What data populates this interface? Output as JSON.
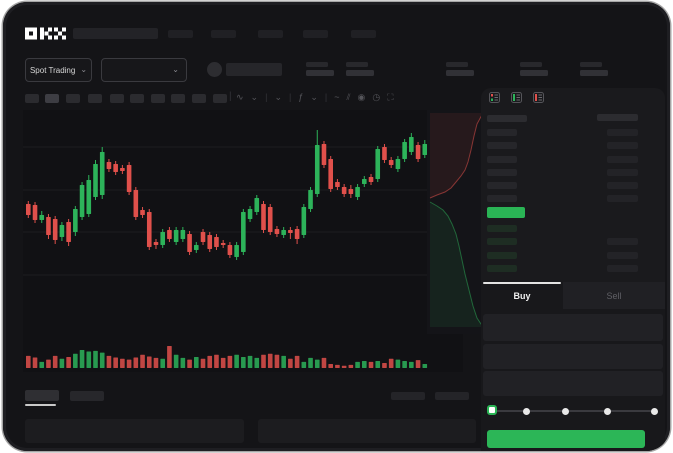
{
  "app": {
    "brand": "OKX"
  },
  "colors": {
    "up_green": "#2db35a",
    "down_red": "#e0504b",
    "accent_green": "#2ab455",
    "tab_indicator": "#e3e3e3",
    "frame_bg": "#141417",
    "panel_bg": "#1a1a1d"
  },
  "market_bar": {
    "market_selector_label": "Spot Trading",
    "selector_chevron": "⌄",
    "pair_select_chevron": "⌄"
  },
  "chart_toolbar": {
    "icons": [
      {
        "name": "candle-style-icon",
        "glyph": "∿"
      },
      {
        "name": "candle-style-chevron",
        "glyph": "⌄"
      },
      {
        "name": "divider",
        "glyph": "|"
      },
      {
        "name": "overlay-chevron",
        "glyph": "⌄"
      },
      {
        "name": "divider",
        "glyph": "|"
      },
      {
        "name": "indicators-icon",
        "glyph": "ƒ"
      },
      {
        "name": "indicators-chevron",
        "glyph": "⌄"
      },
      {
        "name": "divider",
        "glyph": "|"
      },
      {
        "name": "line-tool-icon",
        "glyph": "~"
      },
      {
        "name": "compare-icon",
        "glyph": "⫽"
      },
      {
        "name": "snapshot-icon",
        "glyph": "◉"
      },
      {
        "name": "history-icon",
        "glyph": "◷"
      },
      {
        "name": "fullscreen-icon",
        "glyph": "⛶"
      }
    ]
  },
  "order_book": {
    "view_modes": [
      "combined-book",
      "bids-only",
      "asks-only"
    ],
    "ask_rows": 6,
    "bid_rows": 4,
    "bid_right_bars": [
      false,
      true,
      true,
      true
    ]
  },
  "trade_panel": {
    "tabs": [
      {
        "label": "Buy",
        "active": true
      },
      {
        "label": "Sell",
        "active": false
      }
    ],
    "field_count": 3,
    "slider_stops": 5,
    "action_button_label": ""
  },
  "chart_data": [
    {
      "type": "candlestick",
      "title": "",
      "xlabel": "",
      "ylabel": "",
      "units": "relative (no axis labels visible in wireframe)",
      "ylim": [
        60,
        210
      ],
      "grid": true,
      "candles_ohlc": [
        [
          128,
          131,
          114,
          117
        ],
        [
          127,
          130,
          109,
          112
        ],
        [
          112,
          121,
          109,
          117
        ],
        [
          115,
          118,
          93,
          97
        ],
        [
          113,
          116,
          88,
          92
        ],
        [
          95,
          110,
          91,
          107
        ],
        [
          110,
          113,
          86,
          90
        ],
        [
          100,
          126,
          96,
          123
        ],
        [
          115,
          150,
          112,
          147
        ],
        [
          118,
          157,
          115,
          152
        ],
        [
          135,
          172,
          132,
          168
        ],
        [
          137,
          185,
          133,
          180
        ],
        [
          170,
          173,
          160,
          163
        ],
        [
          168,
          171,
          157,
          160
        ],
        [
          164,
          167,
          158,
          161
        ],
        [
          167,
          170,
          137,
          140
        ],
        [
          142,
          145,
          112,
          115
        ],
        [
          122,
          125,
          114,
          117
        ],
        [
          120,
          123,
          82,
          85
        ],
        [
          90,
          93,
          83,
          87
        ],
        [
          87,
          103,
          84,
          100
        ],
        [
          102,
          105,
          90,
          93
        ],
        [
          90,
          105,
          87,
          102
        ],
        [
          93,
          105,
          90,
          102
        ],
        [
          98,
          101,
          77,
          80
        ],
        [
          82,
          90,
          79,
          87
        ],
        [
          100,
          103,
          87,
          90
        ],
        [
          97,
          100,
          80,
          83
        ],
        [
          95,
          98,
          82,
          85
        ],
        [
          89,
          92,
          84,
          87
        ],
        [
          87,
          90,
          74,
          77
        ],
        [
          75,
          90,
          72,
          87
        ],
        [
          80,
          123,
          77,
          120
        ],
        [
          113,
          126,
          110,
          123
        ],
        [
          120,
          137,
          117,
          134
        ],
        [
          128,
          131,
          99,
          102
        ],
        [
          125,
          128,
          97,
          100
        ],
        [
          103,
          106,
          95,
          98
        ],
        [
          97,
          105,
          94,
          102
        ],
        [
          102,
          105,
          93,
          99
        ],
        [
          103,
          106,
          88,
          93
        ],
        [
          97,
          128,
          94,
          125
        ],
        [
          123,
          145,
          120,
          142
        ],
        [
          138,
          202,
          135,
          187
        ],
        [
          188,
          191,
          164,
          167
        ],
        [
          173,
          176,
          140,
          143
        ],
        [
          150,
          153,
          142,
          145
        ],
        [
          145,
          148,
          135,
          138
        ],
        [
          143,
          147,
          134,
          138
        ],
        [
          135,
          148,
          132,
          145
        ],
        [
          148,
          156,
          145,
          153
        ],
        [
          155,
          158,
          147,
          150
        ],
        [
          153,
          186,
          150,
          183
        ],
        [
          185,
          188,
          169,
          172
        ],
        [
          172,
          175,
          164,
          167
        ],
        [
          163,
          176,
          160,
          173
        ],
        [
          173,
          193,
          170,
          190
        ],
        [
          180,
          199,
          177,
          195
        ],
        [
          187,
          190,
          170,
          173
        ],
        [
          177,
          192,
          174,
          188
        ]
      ]
    },
    {
      "type": "bar",
      "name": "volume",
      "values": [
        55,
        48,
        28,
        38,
        55,
        42,
        50,
        65,
        82,
        75,
        78,
        70,
        55,
        48,
        42,
        38,
        48,
        60,
        52,
        46,
        42,
        100,
        60,
        46,
        38,
        50,
        42,
        55,
        60,
        46,
        55,
        60,
        50,
        55,
        46,
        60,
        65,
        60,
        55,
        42,
        55,
        28,
        46,
        38,
        46,
        18,
        14,
        10,
        14,
        28,
        32,
        28,
        32,
        23,
        42,
        38,
        32,
        28,
        36,
        18
      ]
    },
    {
      "type": "area",
      "name": "depth-profile",
      "asks_curve": [
        [
          56,
          3
        ],
        [
          50,
          14
        ],
        [
          47,
          26
        ],
        [
          44,
          40
        ],
        [
          41,
          52
        ],
        [
          38,
          60
        ],
        [
          34,
          66
        ],
        [
          29,
          72
        ],
        [
          24,
          78
        ],
        [
          18,
          82
        ],
        [
          10,
          85
        ],
        [
          3,
          88
        ]
      ],
      "bids_curve": [
        [
          3,
          92
        ],
        [
          10,
          96
        ],
        [
          16,
          100
        ],
        [
          21,
          106
        ],
        [
          25,
          114
        ],
        [
          29,
          124
        ],
        [
          32,
          136
        ],
        [
          35,
          150
        ],
        [
          38,
          164
        ],
        [
          42,
          180
        ],
        [
          46,
          196
        ],
        [
          50,
          208
        ],
        [
          54,
          214
        ],
        [
          56,
          217
        ]
      ]
    }
  ]
}
